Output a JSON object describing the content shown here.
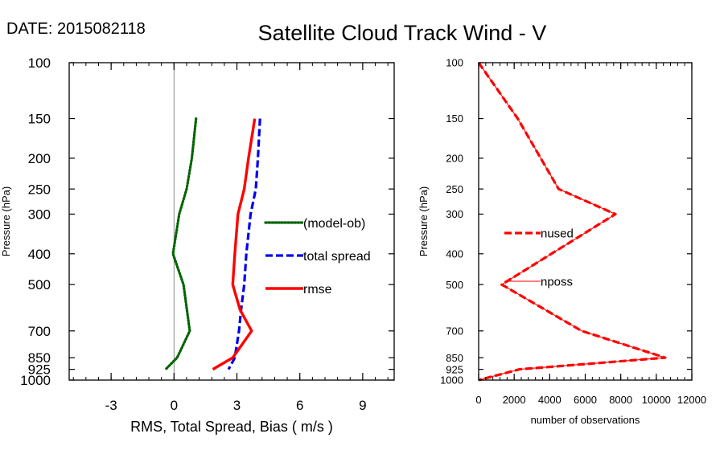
{
  "header": {
    "date_label": "DATE: 2015082118",
    "title": "Satellite Cloud Track Wind - V"
  },
  "chart_data": [
    {
      "type": "line",
      "title": "Satellite Cloud Track Wind - V",
      "xlabel": "RMS, Total Spread, Bias ( m/s )",
      "ylabel": "Pressure (hPa)",
      "xlim": [
        -5,
        10.5
      ],
      "xticks": [
        -3,
        0,
        3,
        6,
        9
      ],
      "xticklabels": [
        "-3",
        "0",
        "3",
        "6",
        "9"
      ],
      "y_scale": "log-reversed",
      "ylim": [
        1000,
        100
      ],
      "yticks": [
        100,
        150,
        200,
        250,
        300,
        400,
        500,
        700,
        850,
        925,
        1000
      ],
      "yticklabels": [
        "100",
        "150",
        "200",
        "250",
        "300",
        "400",
        "500",
        "700",
        "850",
        "925",
        "1000"
      ],
      "zero_line": 0,
      "series": [
        {
          "name": "(model-ob)",
          "style": "dotted",
          "color": "#006400",
          "points": [
            [
              1.05,
              150
            ],
            [
              0.85,
              200
            ],
            [
              0.6,
              250
            ],
            [
              0.25,
              300
            ],
            [
              -0.05,
              400
            ],
            [
              0.45,
              500
            ],
            [
              0.75,
              700
            ],
            [
              0.15,
              850
            ],
            [
              -0.4,
              925
            ]
          ]
        },
        {
          "name": "total spread",
          "style": "dashed",
          "color": "#0000ee",
          "points": [
            [
              4.1,
              150
            ],
            [
              4.0,
              200
            ],
            [
              3.9,
              250
            ],
            [
              3.65,
              300
            ],
            [
              3.45,
              400
            ],
            [
              3.35,
              500
            ],
            [
              3.2,
              600
            ],
            [
              3.1,
              700
            ],
            [
              2.9,
              850
            ],
            [
              2.6,
              925
            ]
          ]
        },
        {
          "name": "rmse",
          "style": "solid",
          "color": "#ff0000",
          "points": [
            [
              3.85,
              150
            ],
            [
              3.55,
              200
            ],
            [
              3.35,
              250
            ],
            [
              3.05,
              300
            ],
            [
              2.9,
              400
            ],
            [
              2.8,
              500
            ],
            [
              3.15,
              600
            ],
            [
              3.7,
              700
            ],
            [
              2.8,
              850
            ],
            [
              1.85,
              925
            ]
          ]
        }
      ],
      "legend": {
        "placement": "right-middle",
        "entries": [
          "(model-ob)",
          "total spread",
          "rmse"
        ]
      }
    },
    {
      "type": "line",
      "xlabel": "number of observations",
      "ylabel": "Pressure (hPa)",
      "xlim": [
        0,
        12000
      ],
      "xticks": [
        0,
        2000,
        4000,
        6000,
        8000,
        10000,
        12000
      ],
      "xticklabels": [
        "0",
        "2000",
        "4000",
        "6000",
        "8000",
        "10000",
        "12000"
      ],
      "y_scale": "log-reversed",
      "ylim": [
        1000,
        100
      ],
      "yticks": [
        100,
        150,
        200,
        250,
        300,
        400,
        500,
        700,
        850,
        925,
        1000
      ],
      "yticklabels": [
        "100",
        "150",
        "200",
        "250",
        "300",
        "400",
        "500",
        "700",
        "850",
        "925",
        "1000"
      ],
      "series": [
        {
          "name": "nused",
          "style": "dashed",
          "color": "#ff0000",
          "points": [
            [
              0,
              100
            ],
            [
              2200,
              150
            ],
            [
              4500,
              250
            ],
            [
              7700,
              300
            ],
            [
              1300,
              500
            ],
            [
              5800,
              700
            ],
            [
              10500,
              850
            ],
            [
              2300,
              925
            ],
            [
              0,
              1000
            ]
          ]
        },
        {
          "name": "nposs",
          "style": "solid-thin",
          "color": "#ff0000",
          "points": [
            [
              0,
              100
            ],
            [
              2200,
              150
            ],
            [
              4500,
              250
            ],
            [
              7700,
              300
            ],
            [
              1300,
              500
            ],
            [
              5800,
              700
            ],
            [
              10500,
              850
            ],
            [
              2300,
              925
            ],
            [
              0,
              1000
            ]
          ]
        }
      ],
      "legend": {
        "placement": "left-middle",
        "entries": [
          "nused",
          "nposs"
        ]
      }
    }
  ]
}
